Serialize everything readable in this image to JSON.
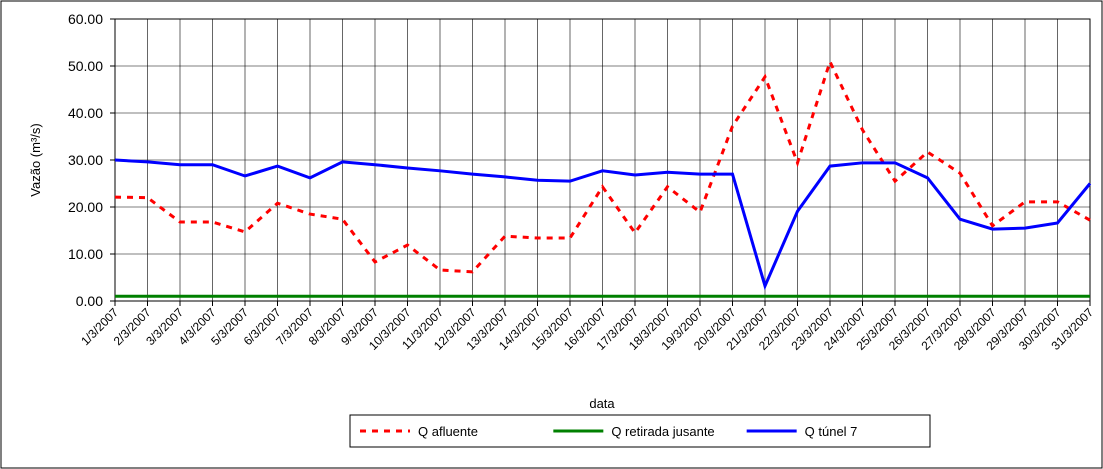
{
  "chart_data": {
    "type": "line",
    "y_label": "Vazão (m³/s)",
    "x_label": "data",
    "categories": [
      "1/3/2007",
      "2/3/2007",
      "3/3/2007",
      "4/3/2007",
      "5/3/2007",
      "6/3/2007",
      "7/3/2007",
      "8/3/2007",
      "9/3/2007",
      "10/3/2007",
      "11/3/2007",
      "12/3/2007",
      "13/3/2007",
      "14/3/2007",
      "15/3/2007",
      "16/3/2007",
      "17/3/2007",
      "18/3/2007",
      "19/3/2007",
      "20/3/2007",
      "21/3/2007",
      "22/3/2007",
      "23/3/2007",
      "24/3/2007",
      "25/3/2007",
      "26/3/2007",
      "27/3/2007",
      "28/3/2007",
      "29/3/2007",
      "30/3/2007",
      "31/3/2007"
    ],
    "series": [
      {
        "name": "Q afluente",
        "color": "#ff0000",
        "dash": true,
        "values": [
          22.1,
          22,
          16.8,
          16.8,
          14.7,
          20.8,
          18.5,
          17.4,
          8.3,
          11.9,
          6.6,
          6.2,
          13.8,
          13.4,
          13.4,
          24.3,
          14.5,
          24.3,
          18.9,
          37.2,
          47.7,
          29.4,
          50.9,
          36.4,
          25.5,
          31.7,
          27.2,
          16,
          21.1,
          21.1,
          17.2
        ]
      },
      {
        "name": "Q retirada jusante",
        "color": "#008000",
        "dash": false,
        "values": [
          1,
          1,
          1,
          1,
          1,
          1,
          1,
          1,
          1,
          1,
          1,
          1,
          1,
          1,
          1,
          1,
          1,
          1,
          1,
          1,
          1,
          1,
          1,
          1,
          1,
          1,
          1,
          1,
          1,
          1,
          1
        ]
      },
      {
        "name": "Q túnel 7",
        "color": "#0000ff",
        "dash": false,
        "values": [
          30,
          29.6,
          29,
          29,
          26.6,
          28.7,
          26.2,
          29.6,
          29,
          28.3,
          27.7,
          27,
          26.4,
          25.7,
          25.5,
          27.7,
          26.8,
          27.4,
          27,
          27,
          3.2,
          19.1,
          28.7,
          29.4,
          29.4,
          26.2,
          17.4,
          15.3,
          15.5,
          16.6,
          25
        ]
      }
    ],
    "ylim": [
      0,
      60
    ],
    "yticks": [
      {
        "value": 0,
        "label": "0.00"
      },
      {
        "value": 10,
        "label": "10.00"
      },
      {
        "value": 20,
        "label": "20.00"
      },
      {
        "value": 30,
        "label": "30.00"
      },
      {
        "value": 40,
        "label": "40.00"
      },
      {
        "value": 50,
        "label": "50.00"
      },
      {
        "value": 60,
        "label": "60.00"
      }
    ],
    "grid": true
  }
}
